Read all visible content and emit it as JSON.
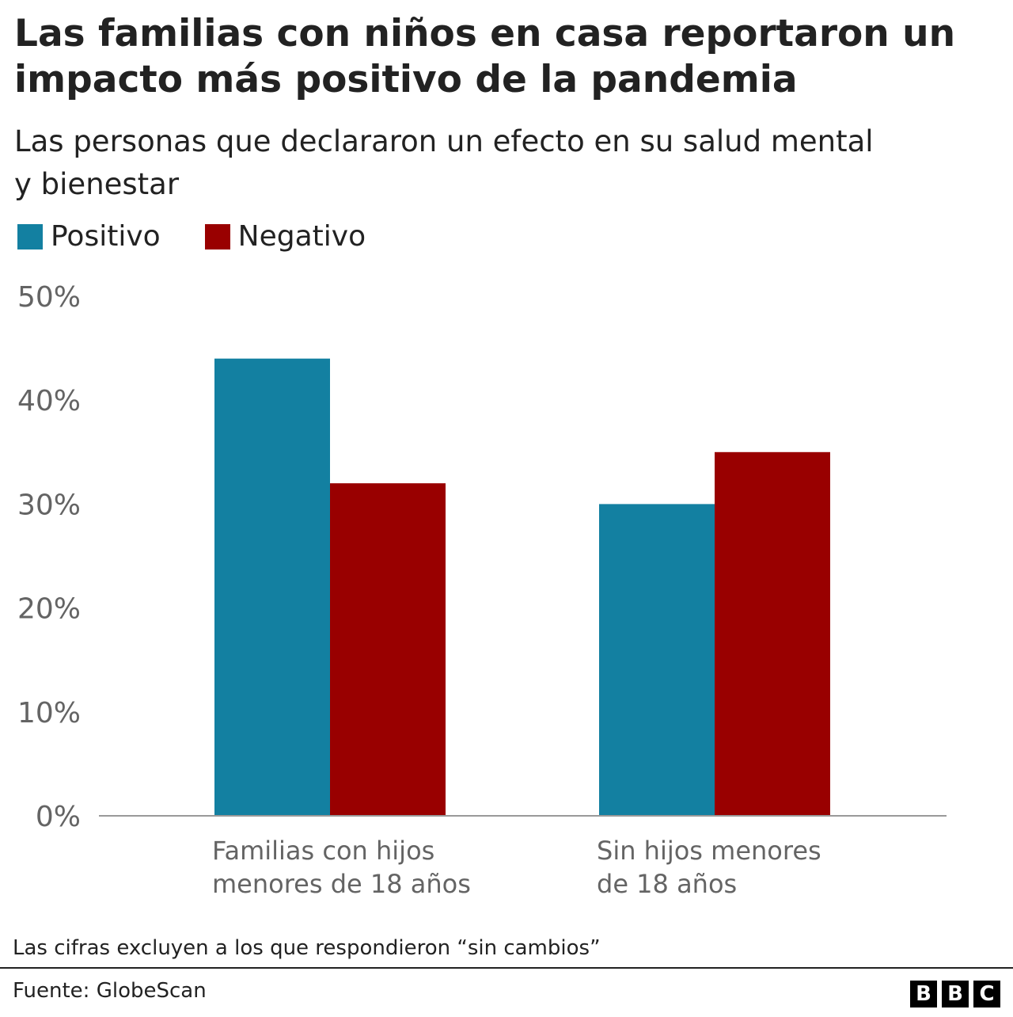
{
  "chart_data": {
    "type": "bar",
    "title": "Las familias con niños en casa reportaron un impacto más positivo de la pandemia",
    "subtitle": "Las personas que declararon un efecto en su salud mental y bienestar",
    "categories": [
      [
        "Familias con hijos",
        "menores de 18 años"
      ],
      [
        "Sin hijos menores",
        "de 18 años"
      ]
    ],
    "series": [
      {
        "name": "Positivo",
        "color": "#1380A1",
        "values": [
          44,
          30
        ]
      },
      {
        "name": "Negativo",
        "color": "#990000",
        "values": [
          32,
          35
        ]
      }
    ],
    "ylim": [
      0,
      50
    ],
    "yticks": [
      0,
      10,
      20,
      30,
      40,
      50
    ],
    "ytick_labels": [
      "0%",
      "10%",
      "20%",
      "30%",
      "40%",
      "50%"
    ],
    "grid": false,
    "legend": "top-left",
    "note": "Las cifras excluyen a los que respondieron “sin cambios”",
    "source": "Fuente: GlobeScan",
    "logo": "BBC"
  }
}
